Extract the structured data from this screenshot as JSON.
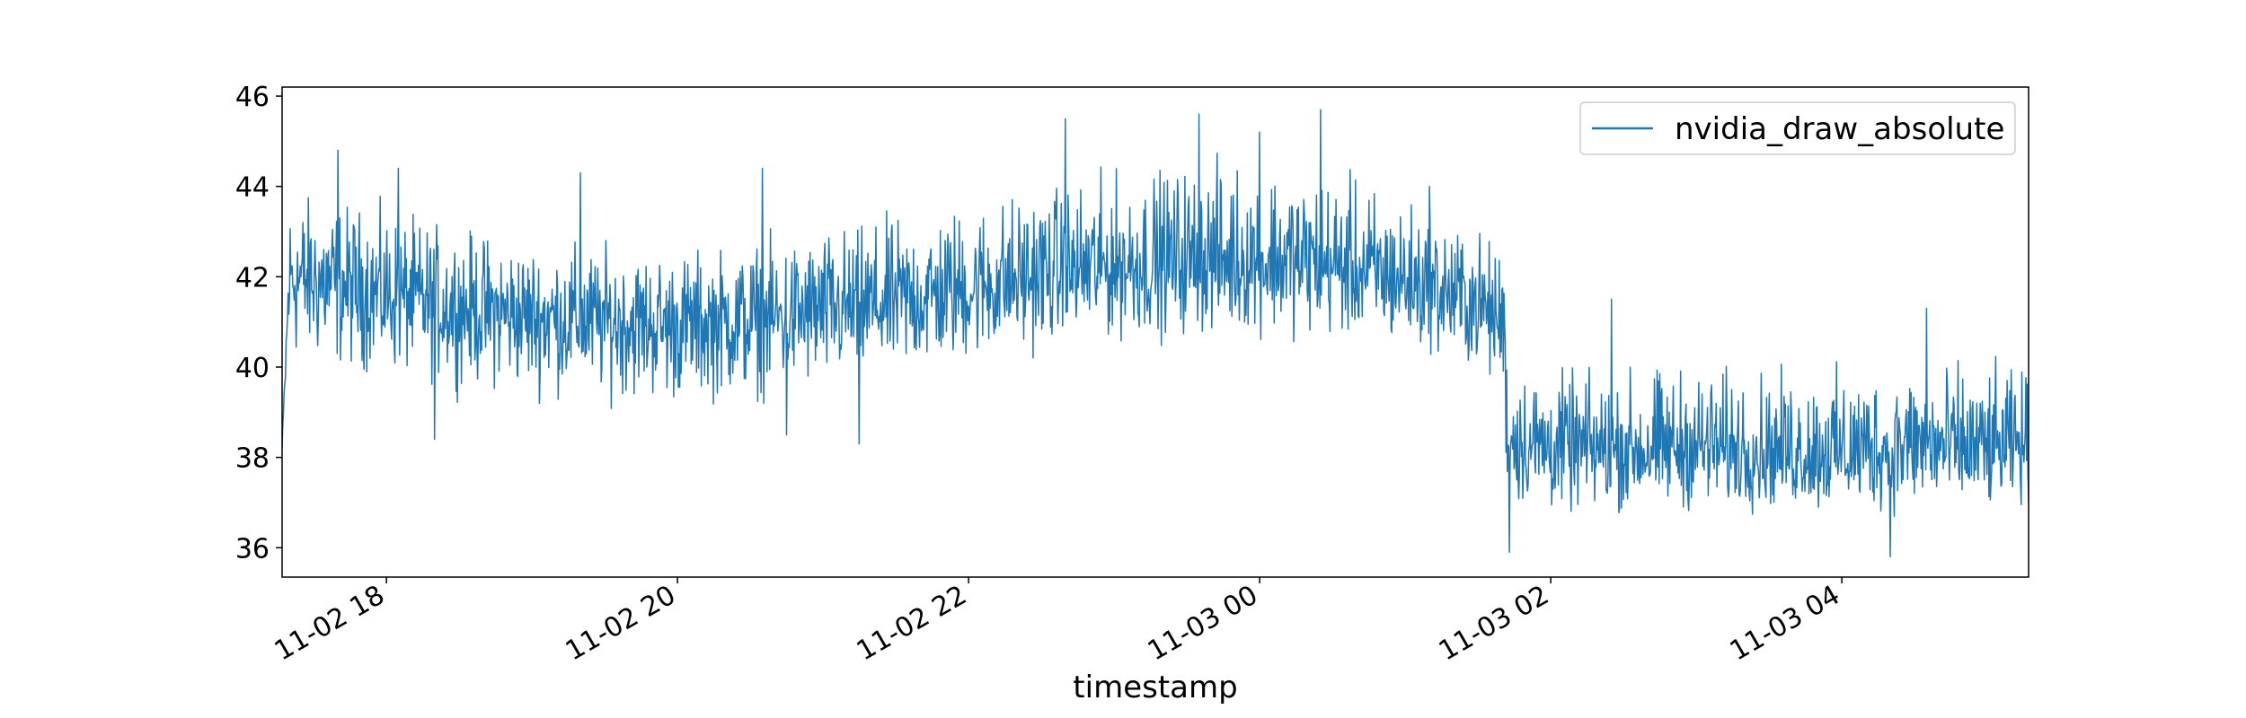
{
  "chart_data": {
    "type": "line",
    "title": "",
    "xlabel": "timestamp",
    "ylabel": "",
    "x_range": [
      "11-02 17:17",
      "11-03 05:17"
    ],
    "ylim": [
      35.35,
      46.2
    ],
    "x_ticks": [
      "11-02 18",
      "11-02 20",
      "11-02 22",
      "11-03 00",
      "11-03 02",
      "11-03 04"
    ],
    "y_ticks": [
      36,
      38,
      40,
      42,
      44,
      46
    ],
    "grid": false,
    "legend": {
      "position": "top-right",
      "entries": [
        "nvidia_draw_absolute"
      ]
    },
    "series": [
      {
        "name": "nvidia_draw_absolute",
        "color": "#1f77b4",
        "x": [
          "11-02 17:17",
          "11-02 17:20",
          "11-02 17:30",
          "11-02 18:00",
          "11-02 18:30",
          "11-02 19:00",
          "11-02 19:30",
          "11-02 20:00",
          "11-02 20:30",
          "11-02 21:00",
          "11-02 21:30",
          "11-02 22:00",
          "11-02 22:30",
          "11-02 23:00",
          "11-02 23:30",
          "11-03 00:00",
          "11-03 00:30",
          "11-03 01:00",
          "11-03 01:30",
          "11-03 01:41",
          "11-03 01:42",
          "11-03 02:00",
          "11-03 02:30",
          "11-03 03:00",
          "11-03 03:30",
          "11-03 04:00",
          "11-03 04:30",
          "11-03 05:00",
          "11-03 05:17"
        ],
        "values": [
          38.2,
          42.0,
          41.9,
          41.6,
          41.3,
          41.1,
          41.0,
          40.9,
          41.0,
          41.2,
          41.4,
          41.7,
          42.0,
          42.2,
          42.3,
          42.3,
          42.2,
          41.9,
          41.4,
          41.0,
          38.4,
          38.2,
          38.1,
          38.2,
          38.1,
          38.1,
          38.2,
          38.1,
          38.3
        ],
        "band_low": [
          38.2,
          39.5,
          39.5,
          39.3,
          39.1,
          38.9,
          38.8,
          38.7,
          38.8,
          39.0,
          39.3,
          39.6,
          39.9,
          40.1,
          40.2,
          40.3,
          40.2,
          39.9,
          39.4,
          38.8,
          36.4,
          36.3,
          36.4,
          36.4,
          36.4,
          36.3,
          36.4,
          36.4,
          36.5
        ],
        "band_high": [
          38.2,
          44.3,
          44.4,
          44.0,
          43.6,
          43.3,
          43.2,
          43.1,
          43.3,
          43.6,
          43.9,
          44.2,
          44.6,
          44.9,
          45.2,
          45.3,
          45.0,
          44.3,
          43.5,
          43.1,
          40.6,
          40.4,
          40.5,
          40.6,
          40.4,
          40.5,
          40.7,
          40.6,
          40.4
        ],
        "peaks": [
          {
            "x": "11-02 17:40",
            "value": 44.8
          },
          {
            "x": "11-02 18:05",
            "value": 44.4
          },
          {
            "x": "11-02 18:20",
            "value": 38.4
          },
          {
            "x": "11-02 19:20",
            "value": 44.3
          },
          {
            "x": "11-02 20:35",
            "value": 44.4
          },
          {
            "x": "11-02 20:45",
            "value": 38.5
          },
          {
            "x": "11-02 21:15",
            "value": 38.3
          },
          {
            "x": "11-02 22:40",
            "value": 45.5
          },
          {
            "x": "11-02 23:35",
            "value": 45.6
          },
          {
            "x": "11-03 00:00",
            "value": 45.2
          },
          {
            "x": "11-03 00:25",
            "value": 45.7
          },
          {
            "x": "11-03 01:10",
            "value": 44.0
          },
          {
            "x": "11-03 02:25",
            "value": 41.5
          },
          {
            "x": "11-03 04:35",
            "value": 41.3
          },
          {
            "x": "11-03 04:20",
            "value": 35.8
          },
          {
            "x": "11-03 01:43",
            "value": 35.9
          }
        ]
      }
    ]
  }
}
